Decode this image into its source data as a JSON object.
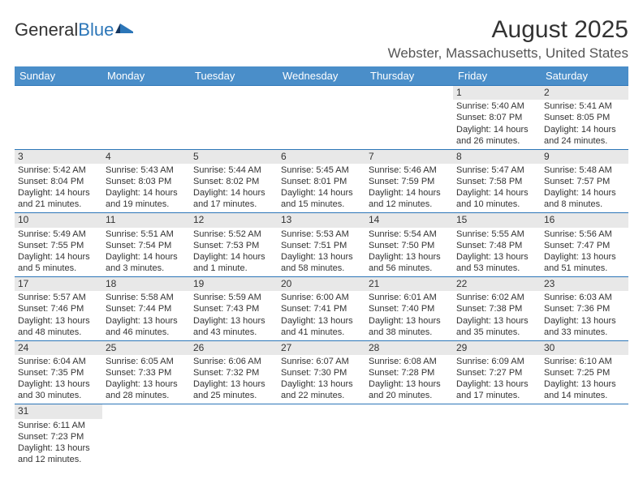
{
  "brand": {
    "part1": "General",
    "part2": "Blue"
  },
  "title": "August 2025",
  "location": "Webster, Massachusetts, United States",
  "colors": {
    "header_bg": "#4a8ec9",
    "header_text": "#ffffff",
    "divider": "#2c76b8",
    "daynum_bg": "#e8e8e8",
    "text": "#333333",
    "background": "#ffffff"
  },
  "weekdays": [
    "Sunday",
    "Monday",
    "Tuesday",
    "Wednesday",
    "Thursday",
    "Friday",
    "Saturday"
  ],
  "weeks": [
    [
      null,
      null,
      null,
      null,
      null,
      {
        "n": "1",
        "sr": "Sunrise: 5:40 AM",
        "ss": "Sunset: 8:07 PM",
        "d1": "Daylight: 14 hours",
        "d2": "and 26 minutes."
      },
      {
        "n": "2",
        "sr": "Sunrise: 5:41 AM",
        "ss": "Sunset: 8:05 PM",
        "d1": "Daylight: 14 hours",
        "d2": "and 24 minutes."
      }
    ],
    [
      {
        "n": "3",
        "sr": "Sunrise: 5:42 AM",
        "ss": "Sunset: 8:04 PM",
        "d1": "Daylight: 14 hours",
        "d2": "and 21 minutes."
      },
      {
        "n": "4",
        "sr": "Sunrise: 5:43 AM",
        "ss": "Sunset: 8:03 PM",
        "d1": "Daylight: 14 hours",
        "d2": "and 19 minutes."
      },
      {
        "n": "5",
        "sr": "Sunrise: 5:44 AM",
        "ss": "Sunset: 8:02 PM",
        "d1": "Daylight: 14 hours",
        "d2": "and 17 minutes."
      },
      {
        "n": "6",
        "sr": "Sunrise: 5:45 AM",
        "ss": "Sunset: 8:01 PM",
        "d1": "Daylight: 14 hours",
        "d2": "and 15 minutes."
      },
      {
        "n": "7",
        "sr": "Sunrise: 5:46 AM",
        "ss": "Sunset: 7:59 PM",
        "d1": "Daylight: 14 hours",
        "d2": "and 12 minutes."
      },
      {
        "n": "8",
        "sr": "Sunrise: 5:47 AM",
        "ss": "Sunset: 7:58 PM",
        "d1": "Daylight: 14 hours",
        "d2": "and 10 minutes."
      },
      {
        "n": "9",
        "sr": "Sunrise: 5:48 AM",
        "ss": "Sunset: 7:57 PM",
        "d1": "Daylight: 14 hours",
        "d2": "and 8 minutes."
      }
    ],
    [
      {
        "n": "10",
        "sr": "Sunrise: 5:49 AM",
        "ss": "Sunset: 7:55 PM",
        "d1": "Daylight: 14 hours",
        "d2": "and 5 minutes."
      },
      {
        "n": "11",
        "sr": "Sunrise: 5:51 AM",
        "ss": "Sunset: 7:54 PM",
        "d1": "Daylight: 14 hours",
        "d2": "and 3 minutes."
      },
      {
        "n": "12",
        "sr": "Sunrise: 5:52 AM",
        "ss": "Sunset: 7:53 PM",
        "d1": "Daylight: 14 hours",
        "d2": "and 1 minute."
      },
      {
        "n": "13",
        "sr": "Sunrise: 5:53 AM",
        "ss": "Sunset: 7:51 PM",
        "d1": "Daylight: 13 hours",
        "d2": "and 58 minutes."
      },
      {
        "n": "14",
        "sr": "Sunrise: 5:54 AM",
        "ss": "Sunset: 7:50 PM",
        "d1": "Daylight: 13 hours",
        "d2": "and 56 minutes."
      },
      {
        "n": "15",
        "sr": "Sunrise: 5:55 AM",
        "ss": "Sunset: 7:48 PM",
        "d1": "Daylight: 13 hours",
        "d2": "and 53 minutes."
      },
      {
        "n": "16",
        "sr": "Sunrise: 5:56 AM",
        "ss": "Sunset: 7:47 PM",
        "d1": "Daylight: 13 hours",
        "d2": "and 51 minutes."
      }
    ],
    [
      {
        "n": "17",
        "sr": "Sunrise: 5:57 AM",
        "ss": "Sunset: 7:46 PM",
        "d1": "Daylight: 13 hours",
        "d2": "and 48 minutes."
      },
      {
        "n": "18",
        "sr": "Sunrise: 5:58 AM",
        "ss": "Sunset: 7:44 PM",
        "d1": "Daylight: 13 hours",
        "d2": "and 46 minutes."
      },
      {
        "n": "19",
        "sr": "Sunrise: 5:59 AM",
        "ss": "Sunset: 7:43 PM",
        "d1": "Daylight: 13 hours",
        "d2": "and 43 minutes."
      },
      {
        "n": "20",
        "sr": "Sunrise: 6:00 AM",
        "ss": "Sunset: 7:41 PM",
        "d1": "Daylight: 13 hours",
        "d2": "and 41 minutes."
      },
      {
        "n": "21",
        "sr": "Sunrise: 6:01 AM",
        "ss": "Sunset: 7:40 PM",
        "d1": "Daylight: 13 hours",
        "d2": "and 38 minutes."
      },
      {
        "n": "22",
        "sr": "Sunrise: 6:02 AM",
        "ss": "Sunset: 7:38 PM",
        "d1": "Daylight: 13 hours",
        "d2": "and 35 minutes."
      },
      {
        "n": "23",
        "sr": "Sunrise: 6:03 AM",
        "ss": "Sunset: 7:36 PM",
        "d1": "Daylight: 13 hours",
        "d2": "and 33 minutes."
      }
    ],
    [
      {
        "n": "24",
        "sr": "Sunrise: 6:04 AM",
        "ss": "Sunset: 7:35 PM",
        "d1": "Daylight: 13 hours",
        "d2": "and 30 minutes."
      },
      {
        "n": "25",
        "sr": "Sunrise: 6:05 AM",
        "ss": "Sunset: 7:33 PM",
        "d1": "Daylight: 13 hours",
        "d2": "and 28 minutes."
      },
      {
        "n": "26",
        "sr": "Sunrise: 6:06 AM",
        "ss": "Sunset: 7:32 PM",
        "d1": "Daylight: 13 hours",
        "d2": "and 25 minutes."
      },
      {
        "n": "27",
        "sr": "Sunrise: 6:07 AM",
        "ss": "Sunset: 7:30 PM",
        "d1": "Daylight: 13 hours",
        "d2": "and 22 minutes."
      },
      {
        "n": "28",
        "sr": "Sunrise: 6:08 AM",
        "ss": "Sunset: 7:28 PM",
        "d1": "Daylight: 13 hours",
        "d2": "and 20 minutes."
      },
      {
        "n": "29",
        "sr": "Sunrise: 6:09 AM",
        "ss": "Sunset: 7:27 PM",
        "d1": "Daylight: 13 hours",
        "d2": "and 17 minutes."
      },
      {
        "n": "30",
        "sr": "Sunrise: 6:10 AM",
        "ss": "Sunset: 7:25 PM",
        "d1": "Daylight: 13 hours",
        "d2": "and 14 minutes."
      }
    ],
    [
      {
        "n": "31",
        "sr": "Sunrise: 6:11 AM",
        "ss": "Sunset: 7:23 PM",
        "d1": "Daylight: 13 hours",
        "d2": "and 12 minutes."
      },
      null,
      null,
      null,
      null,
      null,
      null
    ]
  ]
}
